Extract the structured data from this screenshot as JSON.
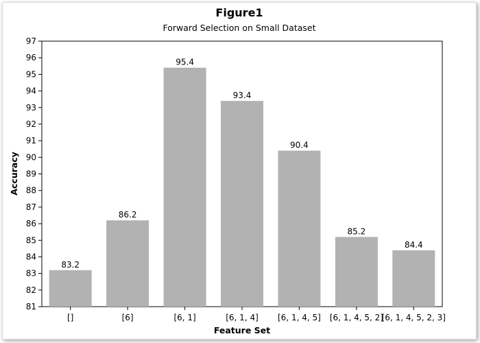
{
  "chart_data": {
    "type": "bar",
    "title": "Figure1",
    "subtitle": "Forward Selection on Small Dataset",
    "xlabel": "Feature Set",
    "ylabel": "Accuracy",
    "categories": [
      "[]",
      "[6]",
      "[6, 1]",
      "[6, 1, 4]",
      "[6, 1, 4, 5]",
      "[6, 1, 4, 5, 2]",
      "[6, 1, 4, 5, 2, 3]"
    ],
    "values": [
      83.2,
      86.2,
      95.4,
      93.4,
      90.4,
      85.2,
      84.4
    ],
    "data_labels": [
      "83.2",
      "86.2",
      "95.4",
      "93.4",
      "90.4",
      "85.2",
      "84.4"
    ],
    "ylim": [
      81,
      97
    ],
    "yticks": [
      81,
      82,
      83,
      84,
      85,
      86,
      87,
      88,
      89,
      90,
      91,
      92,
      93,
      94,
      95,
      96,
      97
    ],
    "bar_color": "#b2b2b2",
    "grid": false,
    "legend": "none"
  }
}
